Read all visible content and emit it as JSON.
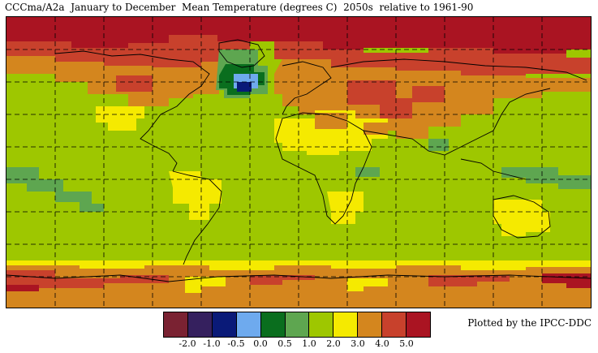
{
  "title": "CCCma/A2a  January to December  Mean Temperature (degrees C)  2050s  relative to 1961-90",
  "credit": "Plotted by the IPCC-DDC",
  "legend": {
    "colors": [
      "#7a2232",
      "#35205e",
      "#0a1a78",
      "#6eaaee",
      "#0a6e1e",
      "#5ea650",
      "#9ec700",
      "#f5ea00",
      "#d4861e",
      "#c8412c",
      "#aa1422"
    ],
    "ticks": [
      "-2.0",
      "-1.0",
      "-0.5",
      "0.0",
      "0.5",
      "1.0",
      "2.0",
      "3.0",
      "4.0",
      "5.0"
    ]
  },
  "map": {
    "projection": "equirectangular",
    "grid": "dashed graticule",
    "background_class": "1.0 to 2.0"
  }
}
